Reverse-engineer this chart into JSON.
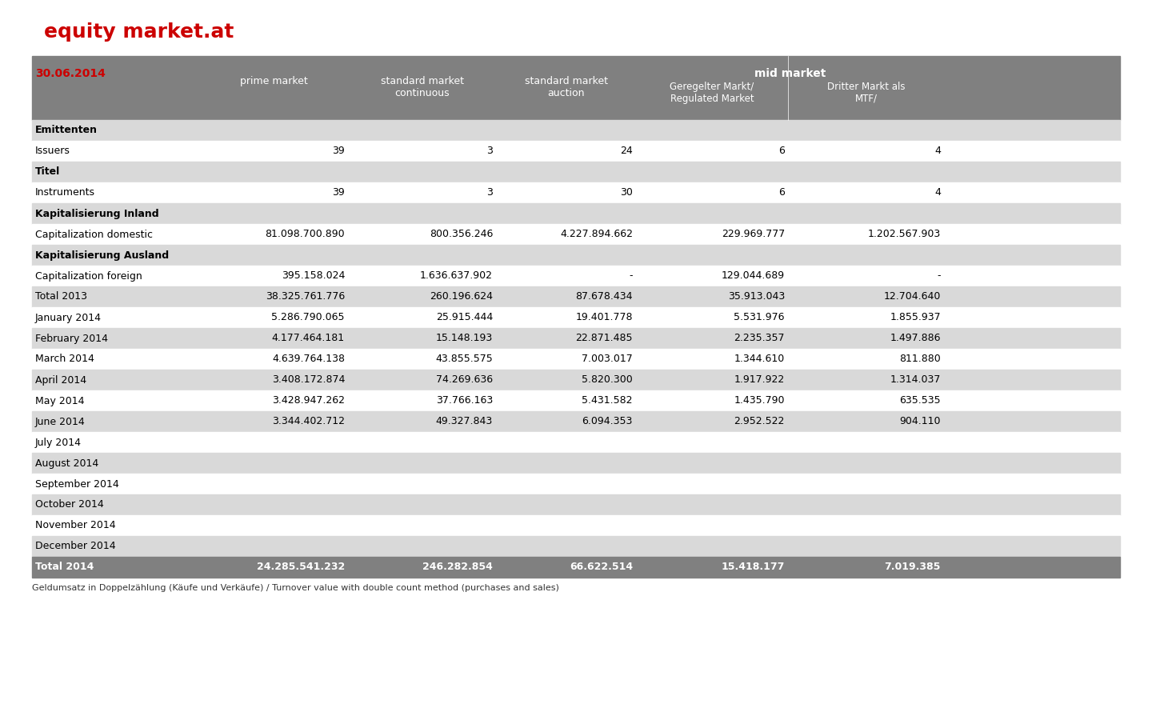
{
  "title": "equity market.at",
  "title_color": "#cc0000",
  "background_color": "#ffffff",
  "header_bg": "#808080",
  "header_text_color": "#ffffff",
  "date_label": "30.06.2014",
  "date_color": "#cc0000",
  "col_headers": [
    "",
    "prime market",
    "standard market\ncontinuous",
    "standard market\nauction",
    "mid market\nGeregelter Markt/\nRegulated Market",
    "Dritter Markt als\nMTF/"
  ],
  "mid_market_header": "mid market",
  "rows": [
    {
      "label": "Emittenten",
      "bold": true,
      "values": [
        "",
        "",
        "",
        "",
        ""
      ],
      "bg": "#d9d9d9"
    },
    {
      "label": "Issuers",
      "bold": false,
      "values": [
        "39",
        "3",
        "24",
        "6",
        "4"
      ],
      "bg": "#ffffff"
    },
    {
      "label": "Titel",
      "bold": true,
      "values": [
        "",
        "",
        "",
        "",
        ""
      ],
      "bg": "#d9d9d9"
    },
    {
      "label": "Instruments",
      "bold": false,
      "values": [
        "39",
        "3",
        "30",
        "6",
        "4"
      ],
      "bg": "#ffffff"
    },
    {
      "label": "Kapitalisierung Inland",
      "bold": true,
      "values": [
        "",
        "",
        "",
        "",
        ""
      ],
      "bg": "#d9d9d9"
    },
    {
      "label": "Capitalization domestic",
      "bold": false,
      "values": [
        "81.098.700.890",
        "800.356.246",
        "4.227.894.662",
        "229.969.777",
        "1.202.567.903"
      ],
      "bg": "#ffffff"
    },
    {
      "label": "Kapitalisierung Ausland",
      "bold": true,
      "values": [
        "",
        "",
        "",
        "",
        ""
      ],
      "bg": "#d9d9d9"
    },
    {
      "label": "Capitalization foreign",
      "bold": false,
      "values": [
        "395.158.024",
        "1.636.637.902",
        "-",
        "129.044.689",
        "-"
      ],
      "bg": "#ffffff"
    },
    {
      "label": "Total 2013",
      "bold": false,
      "values": [
        "38.325.761.776",
        "260.196.624",
        "87.678.434",
        "35.913.043",
        "12.704.640"
      ],
      "bg": "#d9d9d9"
    },
    {
      "label": "January 2014",
      "bold": false,
      "values": [
        "5.286.790.065",
        "25.915.444",
        "19.401.778",
        "5.531.976",
        "1.855.937"
      ],
      "bg": "#ffffff"
    },
    {
      "label": "February 2014",
      "bold": false,
      "values": [
        "4.177.464.181",
        "15.148.193",
        "22.871.485",
        "2.235.357",
        "1.497.886"
      ],
      "bg": "#d9d9d9"
    },
    {
      "label": "March 2014",
      "bold": false,
      "values": [
        "4.639.764.138",
        "43.855.575",
        "7.003.017",
        "1.344.610",
        "811.880"
      ],
      "bg": "#ffffff"
    },
    {
      "label": "April 2014",
      "bold": false,
      "values": [
        "3.408.172.874",
        "74.269.636",
        "5.820.300",
        "1.917.922",
        "1.314.037"
      ],
      "bg": "#d9d9d9"
    },
    {
      "label": "May 2014",
      "bold": false,
      "values": [
        "3.428.947.262",
        "37.766.163",
        "5.431.582",
        "1.435.790",
        "635.535"
      ],
      "bg": "#ffffff"
    },
    {
      "label": "June 2014",
      "bold": false,
      "values": [
        "3.344.402.712",
        "49.327.843",
        "6.094.353",
        "2.952.522",
        "904.110"
      ],
      "bg": "#d9d9d9"
    },
    {
      "label": "July 2014",
      "bold": false,
      "values": [
        "",
        "",
        "",
        "",
        ""
      ],
      "bg": "#ffffff"
    },
    {
      "label": "August 2014",
      "bold": false,
      "values": [
        "",
        "",
        "",
        "",
        ""
      ],
      "bg": "#d9d9d9"
    },
    {
      "label": "September 2014",
      "bold": false,
      "values": [
        "",
        "",
        "",
        "",
        ""
      ],
      "bg": "#ffffff"
    },
    {
      "label": "October 2014",
      "bold": false,
      "values": [
        "",
        "",
        "",
        "",
        ""
      ],
      "bg": "#d9d9d9"
    },
    {
      "label": "November 2014",
      "bold": false,
      "values": [
        "",
        "",
        "",
        "",
        ""
      ],
      "bg": "#ffffff"
    },
    {
      "label": "December 2014",
      "bold": false,
      "values": [
        "",
        "",
        "",
        "",
        ""
      ],
      "bg": "#d9d9d9"
    },
    {
      "label": "Total 2014",
      "bold": true,
      "values": [
        "24.285.541.232",
        "246.282.854",
        "66.622.514",
        "15.418.177",
        "7.019.385"
      ],
      "bg": "#808080",
      "text_color": "#ffffff"
    }
  ],
  "footnote": "Geldumsatz in Doppelzählung (Käufe und Verkäufe) / Turnover value with double count method (purchases and sales)"
}
